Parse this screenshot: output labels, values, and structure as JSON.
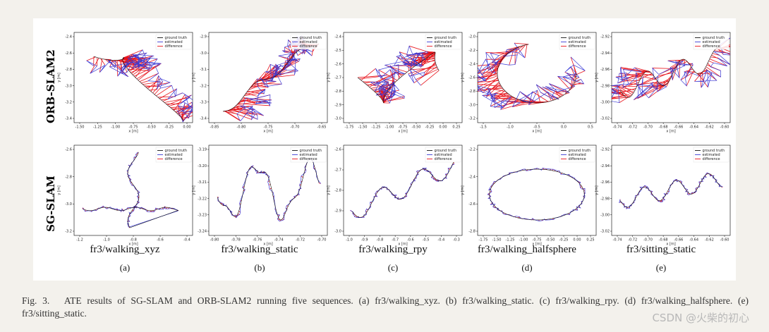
{
  "figure": {
    "row_labels": [
      "ORB-SLAM2",
      "SG-SLAM"
    ],
    "legend": [
      "ground truth",
      "estimated",
      "difference"
    ],
    "colors": {
      "ground_truth": "#111111",
      "estimated": "#3b3bd6",
      "difference": "#e8131b"
    },
    "columns": [
      {
        "sequence": "fr3/walking_xyz",
        "letter": "(a)"
      },
      {
        "sequence": "fr3/walking_static",
        "letter": "(b)"
      },
      {
        "sequence": "fr3/walking_rpy",
        "letter": "(c)"
      },
      {
        "sequence": "fr3/walking_halfsphere",
        "letter": "(d)"
      },
      {
        "sequence": "fr3/sitting_static",
        "letter": "(e)"
      }
    ]
  },
  "chart_data": [
    {
      "type": "line",
      "method": "ORB-SLAM2",
      "sequence": "fr3/walking_xyz",
      "xlabel": "x [m]",
      "ylabel": "y [m]",
      "xticks": [
        "-1.50",
        "-1.25",
        "-1.00",
        "-0.75",
        "-0.50",
        "-0.25",
        "0.00"
      ],
      "yticks": [
        "-2.4",
        "-2.6",
        "-2.8",
        "-3.0",
        "-3.2",
        "-3.4"
      ],
      "xlim": [
        -1.6,
        0.1
      ],
      "ylim": [
        -3.4,
        -2.3
      ]
    },
    {
      "type": "line",
      "method": "ORB-SLAM2",
      "sequence": "fr3/walking_static",
      "xlabel": "x [m]",
      "ylabel": "y [m]",
      "xticks": [
        "-0.85",
        "-0.80",
        "-0.75",
        "-0.70",
        "-0.65"
      ],
      "yticks": [
        "-2.9",
        "-3.0",
        "-3.1",
        "-3.2",
        "-3.3",
        "-3.4"
      ],
      "xlim": [
        -0.88,
        -0.63
      ],
      "ylim": [
        -3.4,
        -2.88
      ]
    },
    {
      "type": "line",
      "method": "ORB-SLAM2",
      "sequence": "fr3/walking_rpy",
      "xlabel": "x [m]",
      "ylabel": "y [m]",
      "xticks": [
        "-1.75",
        "-1.50",
        "-1.25",
        "-1.00",
        "-0.75",
        "-0.50",
        "-0.25",
        "0.00",
        "0.25"
      ],
      "yticks": [
        "-2.4",
        "-2.5",
        "-2.6",
        "-2.7",
        "-2.8",
        "-2.9",
        "-3.0"
      ],
      "xlim": [
        -1.8,
        0.3
      ],
      "ylim": [
        -3.0,
        -2.35
      ]
    },
    {
      "type": "line",
      "method": "ORB-SLAM2",
      "sequence": "fr3/walking_halfsphere",
      "xlabel": "x [m]",
      "ylabel": "y [m]",
      "xticks": [
        "-1.5",
        "-1.0",
        "-0.5",
        "0.0",
        "0.5"
      ],
      "yticks": [
        "-2.0",
        "-2.2",
        "-2.4",
        "-2.6",
        "-2.8",
        "-3.0",
        "-3.2"
      ],
      "xlim": [
        -1.8,
        0.6
      ],
      "ylim": [
        -3.2,
        -1.95
      ]
    },
    {
      "type": "line",
      "method": "ORB-SLAM2",
      "sequence": "fr3/sitting_static",
      "xlabel": "x [m]",
      "ylabel": "y [m]",
      "xticks": [
        "-0.74",
        "-0.72",
        "-0.70",
        "-0.68",
        "-0.66",
        "-0.64",
        "-0.62",
        "-0.60"
      ],
      "yticks": [
        "-2.92",
        "-2.94",
        "-2.96",
        "-2.98",
        "-3.00",
        "-3.02"
      ],
      "xlim": [
        -0.75,
        -0.595
      ],
      "ylim": [
        -3.02,
        -2.915
      ]
    },
    {
      "type": "line",
      "method": "SG-SLAM",
      "sequence": "fr3/walking_xyz",
      "xlabel": "x [m]",
      "ylabel": "y [m]",
      "xticks": [
        "-1.2",
        "-1.0",
        "-0.8",
        "-0.6",
        "-0.4"
      ],
      "yticks": [
        "-2.6",
        "-2.8",
        "-3.0",
        "-3.2"
      ],
      "xlim": [
        -1.3,
        -0.3
      ],
      "ylim": [
        -3.35,
        -2.5
      ]
    },
    {
      "type": "line",
      "method": "SG-SLAM",
      "sequence": "fr3/walking_static",
      "xlabel": "x [m]",
      "ylabel": "y [m]",
      "xticks": [
        "-0.80",
        "-0.78",
        "-0.76",
        "-0.74",
        "-0.72",
        "-0.70"
      ],
      "yticks": [
        "-3.19",
        "-3.20",
        "-3.21",
        "-3.22",
        "-3.23",
        "-3.24"
      ],
      "xlim": [
        -0.81,
        -0.69
      ],
      "ylim": [
        -3.245,
        -3.185
      ]
    },
    {
      "type": "line",
      "method": "SG-SLAM",
      "sequence": "fr3/walking_rpy",
      "xlabel": "x [m]",
      "ylabel": "y [m]",
      "xticks": [
        "-1.0",
        "-0.9",
        "-0.8",
        "-0.7",
        "-0.6",
        "-0.5",
        "-0.4",
        "-0.3"
      ],
      "yticks": [
        "-2.6",
        "-2.7",
        "-2.8",
        "-2.9",
        "-3.0"
      ],
      "xlim": [
        -1.05,
        -0.25
      ],
      "ylim": [
        -3.05,
        -2.55
      ]
    },
    {
      "type": "line",
      "method": "SG-SLAM",
      "sequence": "fr3/walking_halfsphere",
      "xlabel": "x [m]",
      "ylabel": "y [m]",
      "xticks": [
        "-1.75",
        "-1.50",
        "-1.25",
        "-1.00",
        "-0.75",
        "-0.50",
        "-0.25",
        "0.00",
        "0.25"
      ],
      "yticks": [
        "-2.2",
        "-2.4",
        "-2.6",
        "-2.8"
      ],
      "xlim": [
        -1.8,
        0.3
      ],
      "ylim": [
        -2.95,
        -2.15
      ]
    },
    {
      "type": "line",
      "method": "SG-SLAM",
      "sequence": "fr3/sitting_static",
      "xlabel": "x [m]",
      "ylabel": "y [m]",
      "xticks": [
        "-0.74",
        "-0.72",
        "-0.70",
        "-0.68",
        "-0.66",
        "-0.64",
        "-0.62",
        "-0.60"
      ],
      "yticks": [
        "-2.92",
        "-2.94",
        "-2.96",
        "-2.98",
        "-3.00",
        "-3.02"
      ],
      "xlim": [
        -0.75,
        -0.595
      ],
      "ylim": [
        -3.025,
        -2.915
      ]
    }
  ],
  "caption": "Fig. 3.  ATE results of SG-SLAM and ORB-SLAM2 running five sequences. (a) fr3/walking_xyz. (b) fr3/walking_static. (c) fr3/walking_rpy. (d) fr3/walking_halfsphere. (e) fr3/sitting_static.",
  "watermark": "CSDN @火柴的初心"
}
